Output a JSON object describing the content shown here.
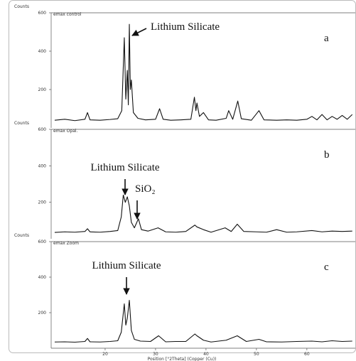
{
  "chart_data": [
    {
      "type": "line",
      "panel_label": "a",
      "subtitle": "emax control",
      "ylabel": "Counts",
      "color": "#111111",
      "xlim": [
        9.3,
        69.6
      ],
      "ylim": [
        0,
        600
      ],
      "yticks": [
        200,
        400,
        600
      ],
      "annotations": [
        "Lithium Silicate"
      ],
      "x": [
        10,
        12,
        14,
        16,
        16.5,
        17,
        19,
        21,
        22.5,
        23.3,
        23.8,
        24.1,
        24.4,
        24.6,
        24.8,
        25.0,
        25.2,
        25.6,
        26.5,
        28,
        30,
        30.8,
        31.5,
        33,
        35,
        37,
        37.7,
        38.0,
        38.2,
        38.7,
        39.5,
        40.5,
        42,
        44,
        44.5,
        45.3,
        46.3,
        47,
        49,
        50.5,
        51.5,
        54,
        56,
        58,
        60,
        61,
        62,
        63,
        64,
        65,
        66,
        67,
        68,
        69
      ],
      "values": [
        40,
        45,
        38,
        45,
        80,
        42,
        40,
        44,
        48,
        90,
        470,
        150,
        300,
        120,
        540,
        200,
        250,
        80,
        50,
        42,
        45,
        100,
        45,
        40,
        42,
        45,
        160,
        90,
        130,
        60,
        80,
        42,
        40,
        50,
        90,
        45,
        140,
        48,
        40,
        90,
        42,
        40,
        42,
        40,
        45,
        60,
        42,
        70,
        42,
        60,
        45,
        65,
        45,
        70
      ]
    },
    {
      "type": "line",
      "panel_label": "b",
      "subtitle": "emax Opal.",
      "ylabel": "Counts",
      "color": "#111111",
      "xlim": [
        9.3,
        69.6
      ],
      "ylim": [
        0,
        600
      ],
      "yticks": [
        200,
        400,
        600
      ],
      "annotations": [
        "Lithium Silicate",
        "SiO₂"
      ],
      "x": [
        10,
        12,
        14,
        16,
        16.5,
        17,
        19,
        21,
        22.5,
        23.2,
        23.6,
        24.0,
        24.4,
        24.8,
        25.2,
        25.8,
        26.6,
        27.2,
        28.5,
        30.5,
        32,
        34,
        36,
        37.8,
        38.2,
        39.5,
        41,
        43.8,
        45,
        46.2,
        47.5,
        50,
        52,
        54,
        56,
        58,
        61,
        63,
        65,
        67,
        69
      ],
      "values": [
        35,
        38,
        36,
        40,
        55,
        38,
        36,
        40,
        45,
        120,
        240,
        200,
        230,
        180,
        90,
        60,
        110,
        50,
        42,
        60,
        38,
        36,
        40,
        75,
        65,
        50,
        36,
        60,
        40,
        80,
        40,
        38,
        36,
        50,
        36,
        38,
        45,
        38,
        42,
        40,
        42
      ]
    },
    {
      "type": "line",
      "panel_label": "c",
      "subtitle": "emax Zoom",
      "ylabel": "Counts",
      "color": "#111111",
      "xlim": [
        9.3,
        69.6
      ],
      "ylim": [
        0,
        600
      ],
      "yticks": [
        200,
        400,
        600
      ],
      "xticks": [
        20,
        30,
        40,
        50,
        60
      ],
      "xlabel": "Position [°2Theta] (Copper (Cu))",
      "annotations": [
        "Lithium Silicate"
      ],
      "x": [
        10,
        12,
        14,
        16,
        16.5,
        17,
        19,
        21,
        22.5,
        23.2,
        23.8,
        24.1,
        24.4,
        24.8,
        25.2,
        25.8,
        27,
        29,
        30.6,
        32,
        34,
        36,
        37.8,
        38.2,
        39.5,
        41,
        44,
        46.2,
        48,
        50.5,
        52,
        55,
        58,
        61,
        63,
        65,
        67,
        69
      ],
      "values": [
        35,
        36,
        34,
        38,
        55,
        36,
        35,
        38,
        42,
        90,
        250,
        130,
        170,
        270,
        100,
        50,
        40,
        38,
        70,
        36,
        38,
        38,
        80,
        70,
        45,
        35,
        45,
        70,
        38,
        50,
        36,
        35,
        38,
        40,
        36,
        42,
        38,
        40
      ]
    }
  ]
}
